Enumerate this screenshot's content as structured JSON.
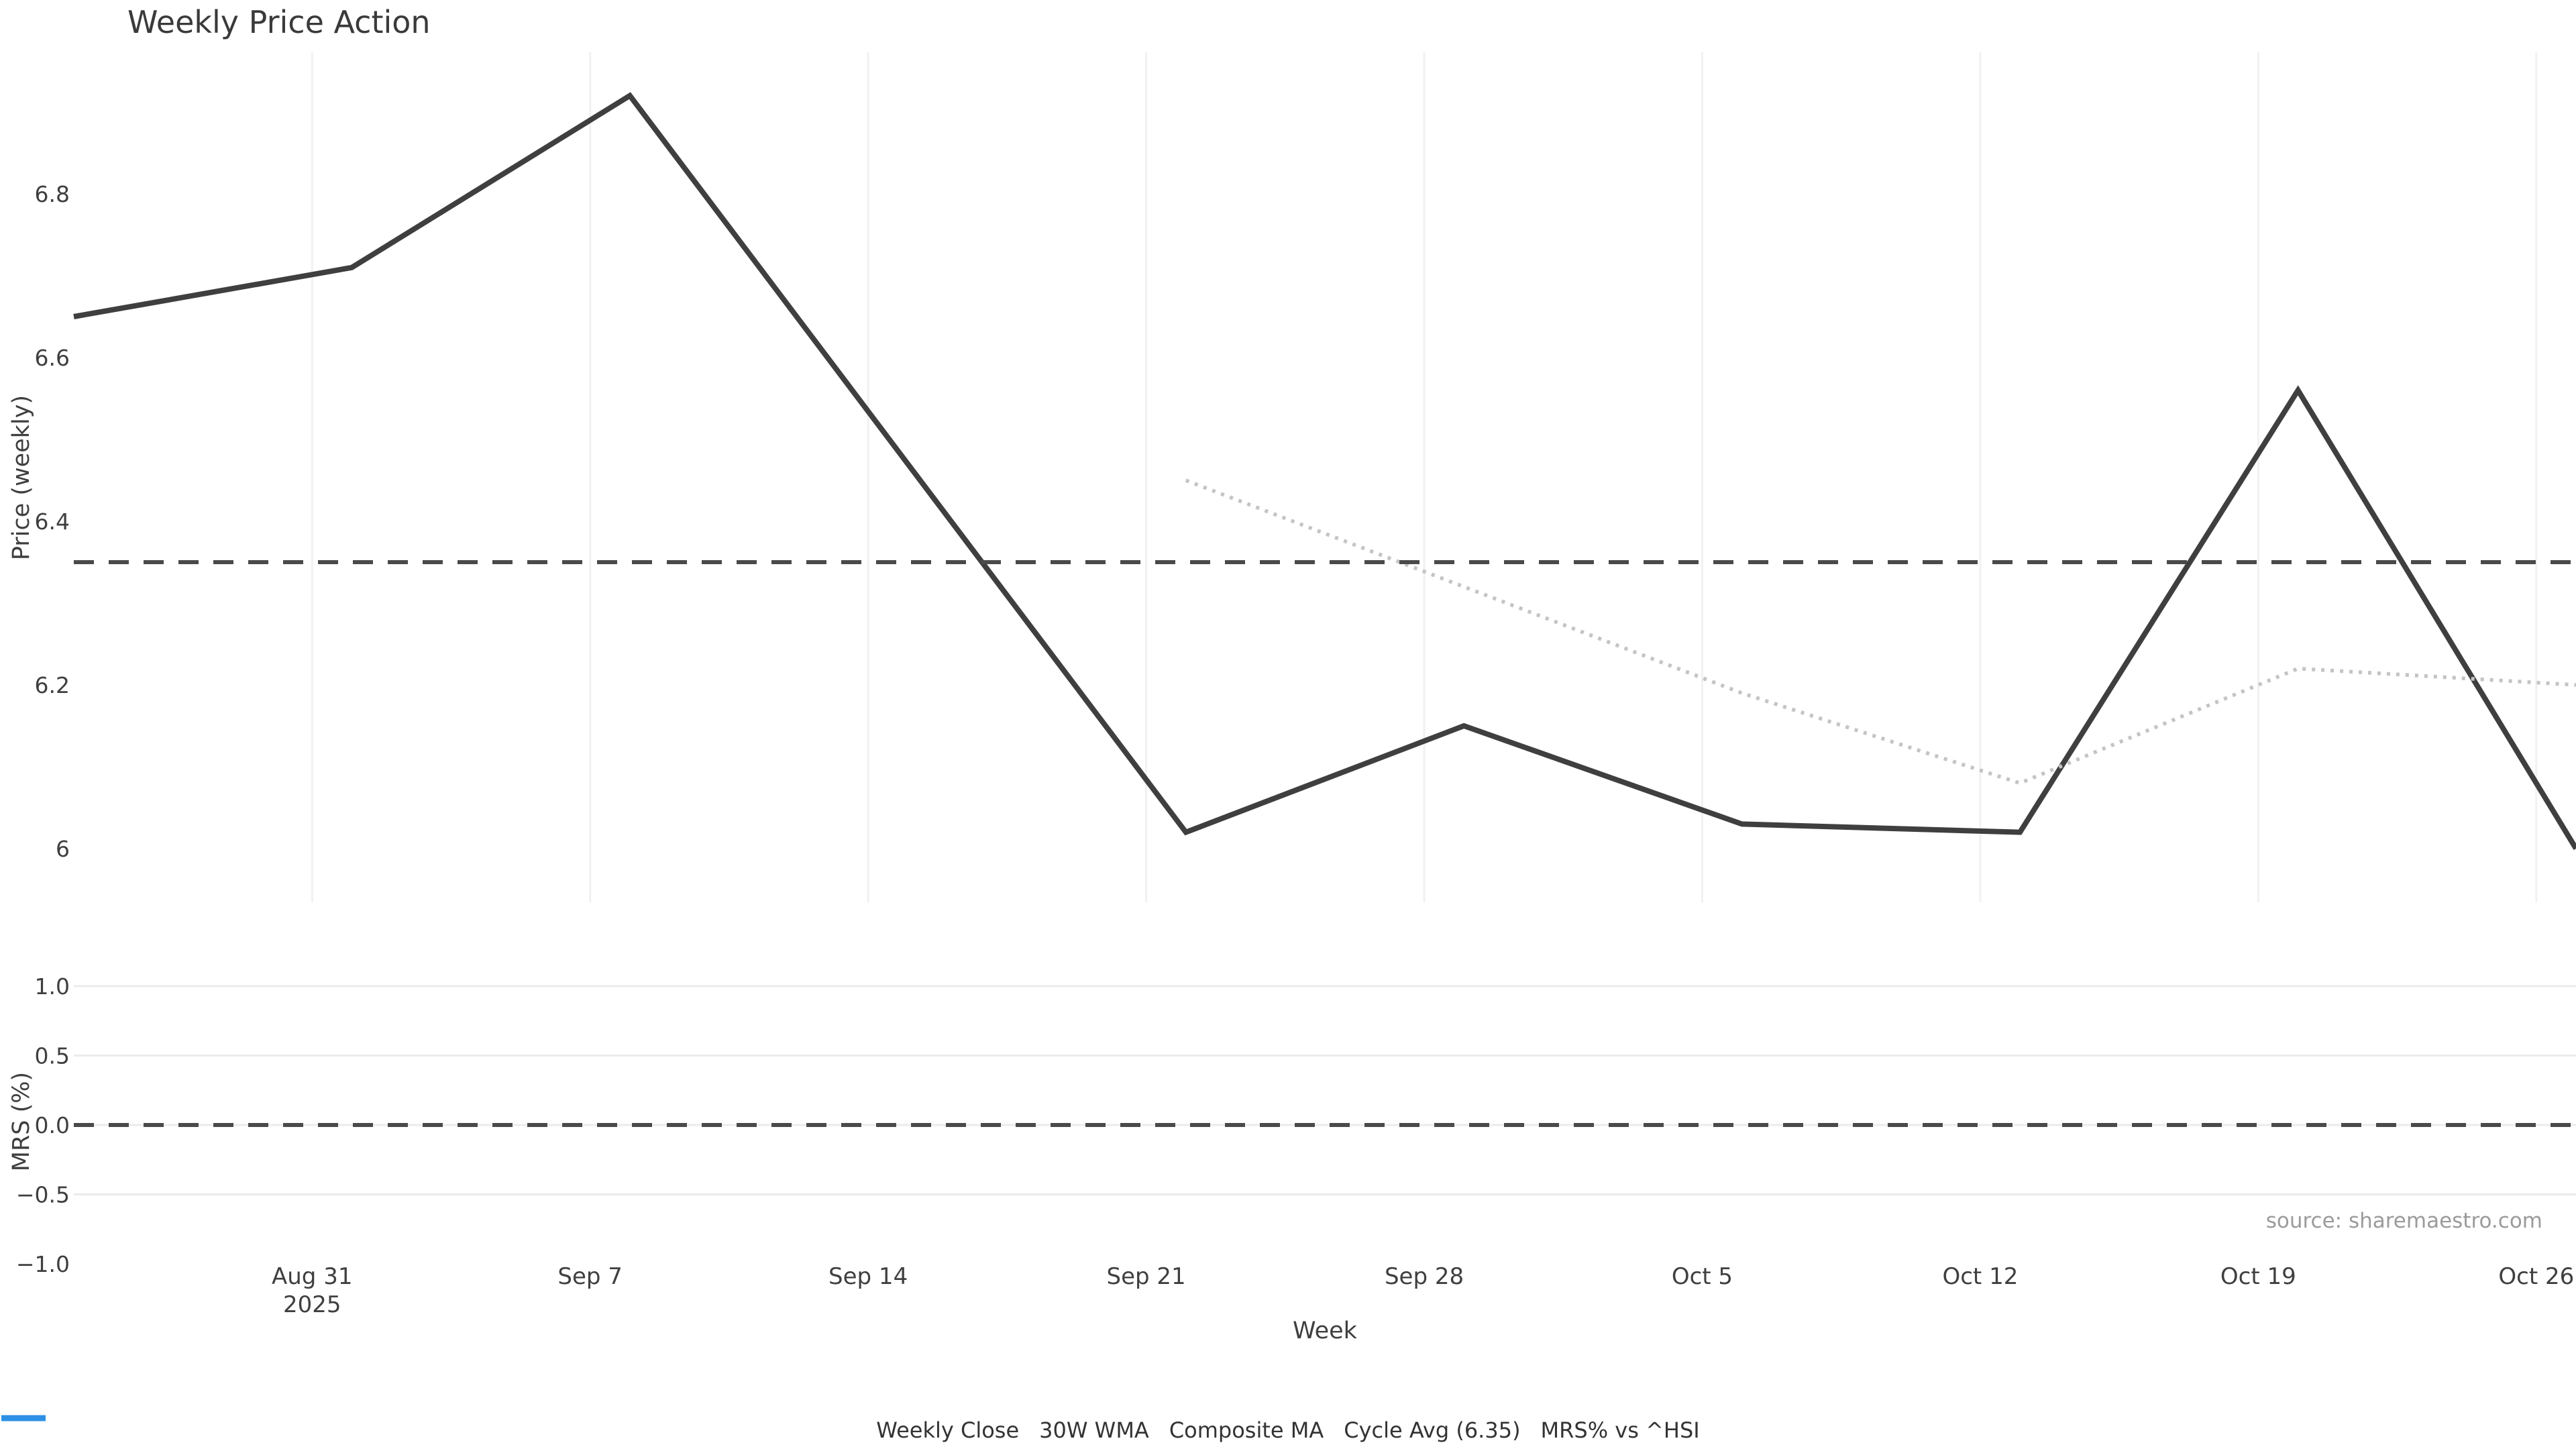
{
  "title": "Weekly Price Action",
  "source_note": "source: sharemaestro.com",
  "axes": {
    "x_title": "Week",
    "price_axis_title": "Price (weekly)",
    "mrs_axis_title": "MRS (%)",
    "price_ticks": [
      {
        "value": 6.0,
        "label": "6"
      },
      {
        "value": 6.2,
        "label": "6.2"
      },
      {
        "value": 6.4,
        "label": "6.4"
      },
      {
        "value": 6.6,
        "label": "6.6"
      },
      {
        "value": 6.8,
        "label": "6.8"
      }
    ],
    "mrs_ticks": [
      {
        "value": 1.0,
        "label": "1.0"
      },
      {
        "value": 0.5,
        "label": "0.5"
      },
      {
        "value": 0.0,
        "label": "0.0"
      },
      {
        "value": -0.5,
        "label": "−0.5"
      },
      {
        "value": -1.0,
        "label": "−1.0"
      }
    ],
    "mrs_gridline_values": [
      1.0,
      0.5,
      0.0,
      -0.5
    ],
    "x_ticks": [
      {
        "date": "2025-08-31",
        "label": "Aug 31",
        "sublabel": "2025"
      },
      {
        "date": "2025-09-07",
        "label": "Sep 7"
      },
      {
        "date": "2025-09-14",
        "label": "Sep 14"
      },
      {
        "date": "2025-09-21",
        "label": "Sep 21"
      },
      {
        "date": "2025-09-28",
        "label": "Sep 28"
      },
      {
        "date": "2025-10-05",
        "label": "Oct 5"
      },
      {
        "date": "2025-10-12",
        "label": "Oct 12"
      },
      {
        "date": "2025-10-19",
        "label": "Oct 19"
      },
      {
        "date": "2025-10-26",
        "label": "Oct 26"
      }
    ]
  },
  "chart_data": [
    {
      "type": "line",
      "title": "Weekly Price Action",
      "xlabel": "Week",
      "ylabel": "Price (weekly)",
      "ylim": [
        5.93,
        6.97
      ],
      "grid": "vertical-weekly-only",
      "x_tick_labels": [
        "Aug 31 2025",
        "Sep 7",
        "Sep 14",
        "Sep 21",
        "Sep 28",
        "Oct 5",
        "Oct 12",
        "Oct 19",
        "Oct 26"
      ],
      "series": [
        {
          "name": "Weekly Close",
          "style": "solid",
          "color": "#3f3f3f",
          "x": [
            "2025-08-25",
            "2025-09-01",
            "2025-09-08",
            "2025-09-15",
            "2025-09-22",
            "2025-09-29",
            "2025-10-06",
            "2025-10-13",
            "2025-10-20",
            "2025-10-27"
          ],
          "y": [
            6.65,
            6.71,
            6.92,
            6.47,
            6.02,
            6.15,
            6.03,
            6.02,
            6.56,
            6.0
          ]
        },
        {
          "name": "30W WMA",
          "style": "solid",
          "color": "#d4a021",
          "x": [],
          "y": [],
          "note": "listed in legend, no visible data in plotted range"
        },
        {
          "name": "Composite MA",
          "style": "dot",
          "color": "#c4c4c4",
          "x": [
            "2025-09-22",
            "2025-09-29",
            "2025-10-06",
            "2025-10-13",
            "2025-10-20",
            "2025-10-27"
          ],
          "y": [
            6.45,
            6.32,
            6.19,
            6.08,
            6.22,
            6.2
          ]
        },
        {
          "name": "Cycle Avg (6.35)",
          "style": "dash",
          "color": "#4a4a4a",
          "x": [
            "2025-08-25",
            "2025-10-27"
          ],
          "y": [
            6.35,
            6.35
          ]
        }
      ]
    },
    {
      "type": "line",
      "xlabel": "Week",
      "ylabel": "MRS (%)",
      "ylim": [
        -1.06,
        1.12
      ],
      "grid": "horizontal-only",
      "yticks": [
        1.0,
        0.5,
        0.0,
        -0.5,
        -1.0
      ],
      "series": [
        {
          "name": "MRS% vs ^HSI",
          "style": "solid",
          "color": "#2e90e5",
          "x": [],
          "y": [],
          "note": "listed in legend, no visible data in plotted range"
        },
        {
          "name": "Zero line",
          "style": "dash",
          "color": "#4a4a4a",
          "x": [
            "2025-08-25",
            "2025-10-27"
          ],
          "y": [
            0.0,
            0.0
          ]
        }
      ]
    }
  ],
  "legend": [
    {
      "label": "Weekly Close",
      "style": "solid",
      "color": "#3f3f3f"
    },
    {
      "label": "30W WMA",
      "style": "solid",
      "color": "#d4a021"
    },
    {
      "label": "Composite MA",
      "style": "dot",
      "color": "#bfbfbf"
    },
    {
      "label": "Cycle Avg (6.35)",
      "style": "dash",
      "color": "#4a4a4a"
    },
    {
      "label": "MRS% vs ^HSI",
      "style": "solid",
      "color": "#2e90e5"
    }
  ],
  "colors": {
    "background": "#ffffff",
    "grid_vertical": "#f1f1f4",
    "grid_horizontal": "#ebebee",
    "tick_text": "#3f3f3f",
    "title_text": "#3a3a3a",
    "source_text": "#9b9b9b"
  }
}
